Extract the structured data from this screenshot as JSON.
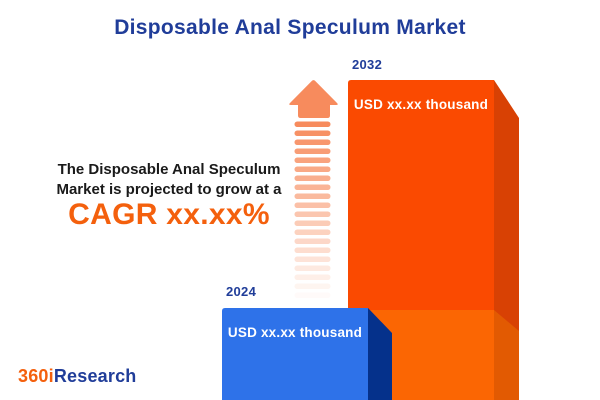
{
  "title": "Disposable Anal Speculum Market",
  "statement": {
    "line1": "The Disposable Anal Speculum",
    "line2": "Market is projected to grow at a",
    "cagr": "CAGR xx.xx%"
  },
  "chart": {
    "bars": [
      {
        "year": "2024",
        "value_label": "USD xx.xx thousand"
      },
      {
        "year": "2032",
        "value_label": "USD xx.xx thousand"
      }
    ]
  },
  "logo": {
    "part1": "360i",
    "part2": "Research"
  },
  "arrow": {
    "stripe_count": 20
  },
  "colors": {
    "background": "#FFFFFF",
    "title_blue": "#203D99",
    "text_black": "#1A1A1A",
    "accent_orange": "#F4600D",
    "arrow_salmon": "#F78B5D",
    "bar2032_front_top": "#FA4A01",
    "bar2032_front_bottom": "#FB6603",
    "bar2032_side_top": "#D84104",
    "bar2032_side_bottom": "#E25A02",
    "bar2024_front": "#2E72E9",
    "bar2024_side": "#05318B"
  },
  "chart_data": {
    "type": "bar",
    "categories": [
      "2024",
      "2032"
    ],
    "values": [
      null,
      null
    ],
    "value_labels": [
      "USD xx.xx thousand",
      "USD xx.xx thousand"
    ],
    "series_note": "numeric values masked as placeholders (xx.xx) in source image",
    "title": "Disposable Anal Speculum Market",
    "annotation": "The Disposable Anal Speculum Market is projected to grow at a CAGR xx.xx%",
    "xlabel": "",
    "ylabel": "",
    "legend": "none",
    "grid": false
  }
}
